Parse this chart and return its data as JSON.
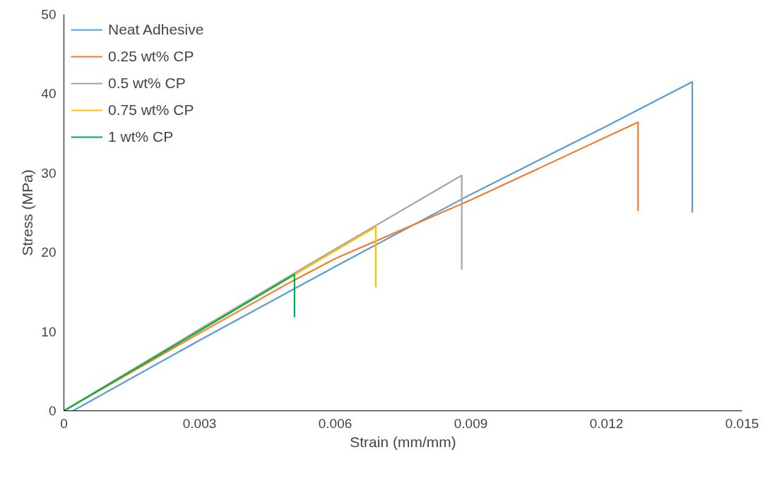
{
  "chart_data": {
    "type": "line",
    "xlabel": "Strain (mm/mm)",
    "ylabel": "Stress (MPa)",
    "xlim": [
      0,
      0.015
    ],
    "xticks": [
      {
        "value": 0,
        "label": "0"
      },
      0.003,
      0.006,
      0.009,
      0.012,
      0.015
    ],
    "ylim": [
      0,
      50
    ],
    "yticks": [
      0,
      10,
      20,
      30,
      40,
      50
    ],
    "grid": false,
    "legend": "top left",
    "marker": "none",
    "line_style": "solid",
    "series": [
      {
        "name": "Neat Adhesive",
        "color": "#5b9bd5",
        "x": [
          0.0002,
          0.003,
          0.006,
          0.009,
          0.012,
          0.0139,
          0.0139
        ],
        "values": [
          0,
          8.9,
          18.2,
          27.3,
          35.9,
          41.5,
          25
        ]
      },
      {
        "name": "0.25 wt% CP",
        "color": "#ed7d31",
        "x": [
          0,
          0.003,
          0.005,
          0.006,
          0.009,
          0.0127,
          0.0127
        ],
        "values": [
          0,
          9.8,
          16.2,
          19.2,
          26.6,
          36.4,
          25.2
        ]
      },
      {
        "name": "0.5 wt% CP",
        "color": "#a5a5a5",
        "x": [
          0,
          0.003,
          0.006,
          0.0088,
          0.0088
        ],
        "values": [
          0,
          10.3,
          20.4,
          29.7,
          17.8
        ]
      },
      {
        "name": "0.75 wt% CP",
        "color": "#ffc000",
        "x": [
          0,
          0.003,
          0.0069,
          0.0069
        ],
        "values": [
          0,
          10.1,
          23.2,
          15.6
        ]
      },
      {
        "name": "1 wt% CP",
        "color": "#00b050",
        "x": [
          0,
          0.003,
          0.0051,
          0.0051
        ],
        "values": [
          0,
          10.1,
          17.2,
          11.8
        ]
      }
    ]
  }
}
